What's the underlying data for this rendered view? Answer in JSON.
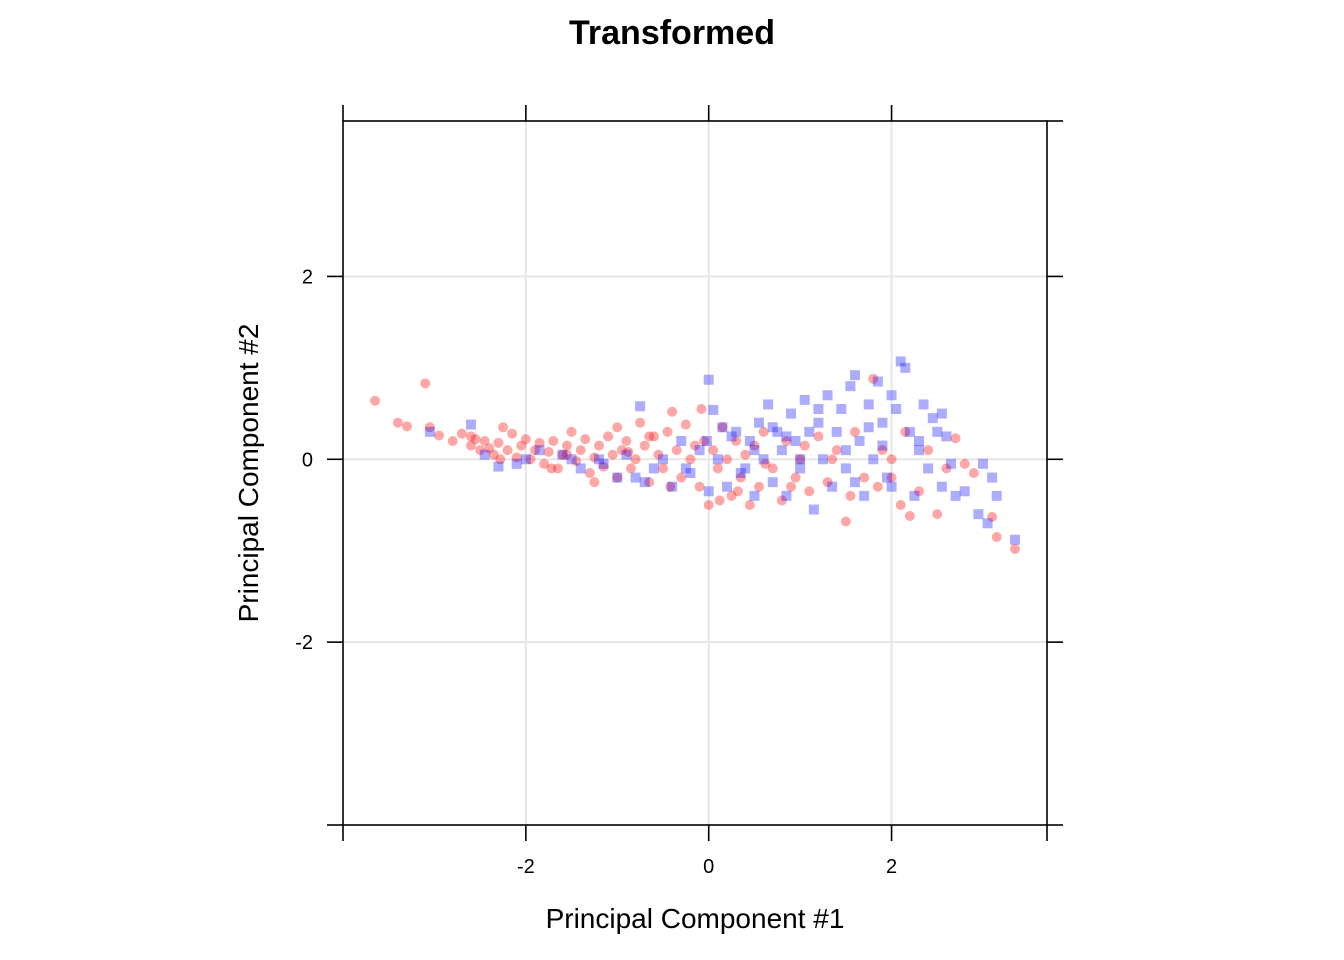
{
  "chart_data": {
    "type": "scatter",
    "title": "Transformed",
    "xlabel": "Principal Component #1",
    "ylabel": "Principal Component #2",
    "xlim": [
      -4,
      3.7
    ],
    "ylim": [
      -4,
      3.7
    ],
    "xticks": [
      -2,
      0,
      2
    ],
    "yticks": [
      -2,
      0,
      2
    ],
    "x_tick_labels": [
      "-2",
      "0",
      "2"
    ],
    "y_tick_labels": [
      "-2",
      "0",
      "2"
    ],
    "grid": true,
    "legend": "none",
    "series": [
      {
        "marker": "circle",
        "color": "#ff0000",
        "opacity": 0.35,
        "points": [
          [
            -3.65,
            0.64
          ],
          [
            -3.4,
            0.4
          ],
          [
            -3.3,
            0.36
          ],
          [
            -3.1,
            0.83
          ],
          [
            -3.05,
            0.35
          ],
          [
            -2.95,
            0.26
          ],
          [
            -2.8,
            0.2
          ],
          [
            -2.7,
            0.28
          ],
          [
            -2.6,
            0.15
          ],
          [
            -2.55,
            0.22
          ],
          [
            -2.5,
            0.1
          ],
          [
            -2.45,
            0.2
          ],
          [
            -2.4,
            0.12
          ],
          [
            -2.35,
            0.05
          ],
          [
            -2.3,
            0.18
          ],
          [
            -2.25,
            0.35
          ],
          [
            -2.2,
            0.1
          ],
          [
            -2.15,
            0.28
          ],
          [
            -2.1,
            0.02
          ],
          [
            -2.05,
            0.15
          ],
          [
            -2.0,
            0.22
          ],
          [
            -1.95,
            0.0
          ],
          [
            -1.9,
            0.1
          ],
          [
            -1.85,
            0.18
          ],
          [
            -1.8,
            -0.05
          ],
          [
            -1.75,
            0.08
          ],
          [
            -1.7,
            0.2
          ],
          [
            -1.65,
            -0.1
          ],
          [
            -1.6,
            0.05
          ],
          [
            -1.55,
            0.15
          ],
          [
            -1.5,
            0.3
          ],
          [
            -1.45,
            -0.02
          ],
          [
            -1.4,
            0.1
          ],
          [
            -1.35,
            0.22
          ],
          [
            -1.3,
            -0.15
          ],
          [
            -1.25,
            0.02
          ],
          [
            -1.2,
            0.15
          ],
          [
            -1.15,
            -0.08
          ],
          [
            -1.1,
            0.25
          ],
          [
            -1.05,
            0.05
          ],
          [
            -1.0,
            -0.2
          ],
          [
            -0.95,
            0.1
          ],
          [
            -0.9,
            0.2
          ],
          [
            -0.85,
            -0.1
          ],
          [
            -0.8,
            0.0
          ],
          [
            -0.75,
            0.4
          ],
          [
            -0.7,
            0.15
          ],
          [
            -0.65,
            -0.25
          ],
          [
            -0.6,
            0.25
          ],
          [
            -0.55,
            0.05
          ],
          [
            -0.5,
            -0.1
          ],
          [
            -0.45,
            0.3
          ],
          [
            -0.4,
            0.52
          ],
          [
            -0.35,
            0.1
          ],
          [
            -0.3,
            -0.2
          ],
          [
            -0.25,
            0.38
          ],
          [
            -0.2,
            0.0
          ],
          [
            -0.15,
            0.15
          ],
          [
            -0.1,
            -0.3
          ],
          [
            -0.08,
            0.55
          ],
          [
            -0.05,
            0.2
          ],
          [
            0.0,
            -0.5
          ],
          [
            0.05,
            0.1
          ],
          [
            0.1,
            -0.1
          ],
          [
            0.15,
            0.35
          ],
          [
            0.2,
            0.0
          ],
          [
            0.25,
            -0.4
          ],
          [
            0.3,
            0.2
          ],
          [
            0.35,
            -0.2
          ],
          [
            0.4,
            0.05
          ],
          [
            0.45,
            -0.5
          ],
          [
            0.5,
            0.15
          ],
          [
            0.55,
            -0.3
          ],
          [
            0.6,
            0.3
          ],
          [
            0.7,
            -0.1
          ],
          [
            0.8,
            -0.45
          ],
          [
            0.85,
            0.2
          ],
          [
            0.9,
            -0.3
          ],
          [
            1.0,
            0.0
          ],
          [
            1.1,
            -0.35
          ],
          [
            1.2,
            0.25
          ],
          [
            1.3,
            -0.25
          ],
          [
            1.4,
            0.1
          ],
          [
            1.5,
            -0.68
          ],
          [
            1.55,
            -0.4
          ],
          [
            1.6,
            0.3
          ],
          [
            1.7,
            -0.2
          ],
          [
            1.8,
            0.88
          ],
          [
            1.85,
            -0.3
          ],
          [
            1.9,
            0.1
          ],
          [
            2.0,
            -0.2
          ],
          [
            2.1,
            -0.5
          ],
          [
            2.15,
            0.3
          ],
          [
            2.2,
            -0.62
          ],
          [
            2.3,
            -0.35
          ],
          [
            2.4,
            0.1
          ],
          [
            2.5,
            -0.6
          ],
          [
            2.6,
            -0.1
          ],
          [
            2.7,
            0.23
          ],
          [
            2.8,
            -0.05
          ],
          [
            2.9,
            -0.15
          ],
          [
            3.1,
            -0.63
          ],
          [
            3.15,
            -0.85
          ],
          [
            3.35,
            -0.98
          ],
          [
            -2.28,
            0.0
          ],
          [
            -1.72,
            -0.1
          ],
          [
            -1.25,
            -0.25
          ],
          [
            -0.88,
            0.08
          ],
          [
            -0.42,
            -0.3
          ],
          [
            0.12,
            -0.45
          ],
          [
            0.62,
            -0.05
          ],
          [
            1.05,
            0.15
          ],
          [
            -2.6,
            0.25
          ],
          [
            -1.55,
            0.05
          ],
          [
            -0.65,
            0.25
          ],
          [
            0.32,
            -0.35
          ],
          [
            1.35,
            0.0
          ],
          [
            2.0,
            0.0
          ],
          [
            -1.0,
            0.35
          ],
          [
            0.95,
            -0.2
          ]
        ]
      },
      {
        "marker": "square",
        "color": "#0000ff",
        "opacity": 0.32,
        "points": [
          [
            -3.05,
            0.3
          ],
          [
            -2.6,
            0.38
          ],
          [
            -2.45,
            0.05
          ],
          [
            -2.3,
            -0.08
          ],
          [
            -2.1,
            -0.05
          ],
          [
            -1.85,
            0.1
          ],
          [
            -1.6,
            0.05
          ],
          [
            -1.4,
            -0.1
          ],
          [
            -1.2,
            0.0
          ],
          [
            -1.0,
            -0.2
          ],
          [
            -0.9,
            0.05
          ],
          [
            -0.7,
            -0.25
          ],
          [
            -0.6,
            -0.1
          ],
          [
            -0.5,
            0.0
          ],
          [
            -0.4,
            -0.3
          ],
          [
            -0.3,
            0.2
          ],
          [
            -0.2,
            -0.15
          ],
          [
            -0.1,
            0.1
          ],
          [
            -0.02,
            0.2
          ],
          [
            0.0,
            0.87
          ],
          [
            0.05,
            0.54
          ],
          [
            0.1,
            0.0
          ],
          [
            0.2,
            -0.3
          ],
          [
            0.3,
            0.3
          ],
          [
            0.4,
            -0.1
          ],
          [
            0.45,
            0.2
          ],
          [
            0.5,
            -0.4
          ],
          [
            0.55,
            0.4
          ],
          [
            0.6,
            0.0
          ],
          [
            0.65,
            0.6
          ],
          [
            0.7,
            -0.25
          ],
          [
            0.75,
            0.3
          ],
          [
            0.8,
            0.1
          ],
          [
            0.85,
            -0.4
          ],
          [
            0.9,
            0.5
          ],
          [
            0.95,
            0.2
          ],
          [
            1.0,
            -0.1
          ],
          [
            1.05,
            0.65
          ],
          [
            1.1,
            0.3
          ],
          [
            1.15,
            -0.55
          ],
          [
            1.2,
            0.4
          ],
          [
            1.25,
            0.0
          ],
          [
            1.3,
            0.7
          ],
          [
            1.35,
            -0.3
          ],
          [
            1.4,
            0.3
          ],
          [
            1.45,
            0.55
          ],
          [
            1.5,
            -0.1
          ],
          [
            1.55,
            0.8
          ],
          [
            1.6,
            0.92
          ],
          [
            1.65,
            0.2
          ],
          [
            1.7,
            -0.4
          ],
          [
            1.75,
            0.6
          ],
          [
            1.8,
            0.0
          ],
          [
            1.85,
            0.85
          ],
          [
            1.9,
            0.4
          ],
          [
            1.95,
            -0.2
          ],
          [
            2.0,
            0.7
          ],
          [
            2.05,
            0.55
          ],
          [
            2.1,
            1.07
          ],
          [
            2.15,
            1.0
          ],
          [
            2.2,
            0.3
          ],
          [
            2.25,
            -0.4
          ],
          [
            2.3,
            0.1
          ],
          [
            2.35,
            0.6
          ],
          [
            2.4,
            -0.1
          ],
          [
            2.45,
            0.45
          ],
          [
            2.5,
            0.3
          ],
          [
            2.55,
            0.5
          ],
          [
            2.6,
            0.25
          ],
          [
            2.65,
            -0.05
          ],
          [
            2.7,
            -0.4
          ],
          [
            2.8,
            -0.35
          ],
          [
            2.95,
            -0.6
          ],
          [
            3.0,
            -0.05
          ],
          [
            3.05,
            -0.7
          ],
          [
            3.1,
            -0.2
          ],
          [
            3.15,
            -0.4
          ],
          [
            3.35,
            -0.88
          ],
          [
            -0.75,
            0.58
          ],
          [
            0.25,
            0.25
          ],
          [
            -1.5,
            0.0
          ],
          [
            -0.8,
            -0.2
          ],
          [
            0.0,
            -0.35
          ],
          [
            0.5,
            0.1
          ],
          [
            1.0,
            0.0
          ],
          [
            1.5,
            0.1
          ],
          [
            2.0,
            -0.3
          ],
          [
            -2.0,
            0.0
          ],
          [
            0.15,
            0.35
          ],
          [
            1.2,
            0.55
          ],
          [
            0.35,
            -0.15
          ],
          [
            0.85,
            0.25
          ],
          [
            1.75,
            0.35
          ],
          [
            2.3,
            0.2
          ],
          [
            -0.25,
            -0.1
          ],
          [
            0.7,
            0.35
          ],
          [
            1.6,
            -0.25
          ],
          [
            -1.15,
            -0.05
          ],
          [
            1.9,
            0.15
          ],
          [
            2.55,
            -0.3
          ]
        ]
      }
    ]
  }
}
